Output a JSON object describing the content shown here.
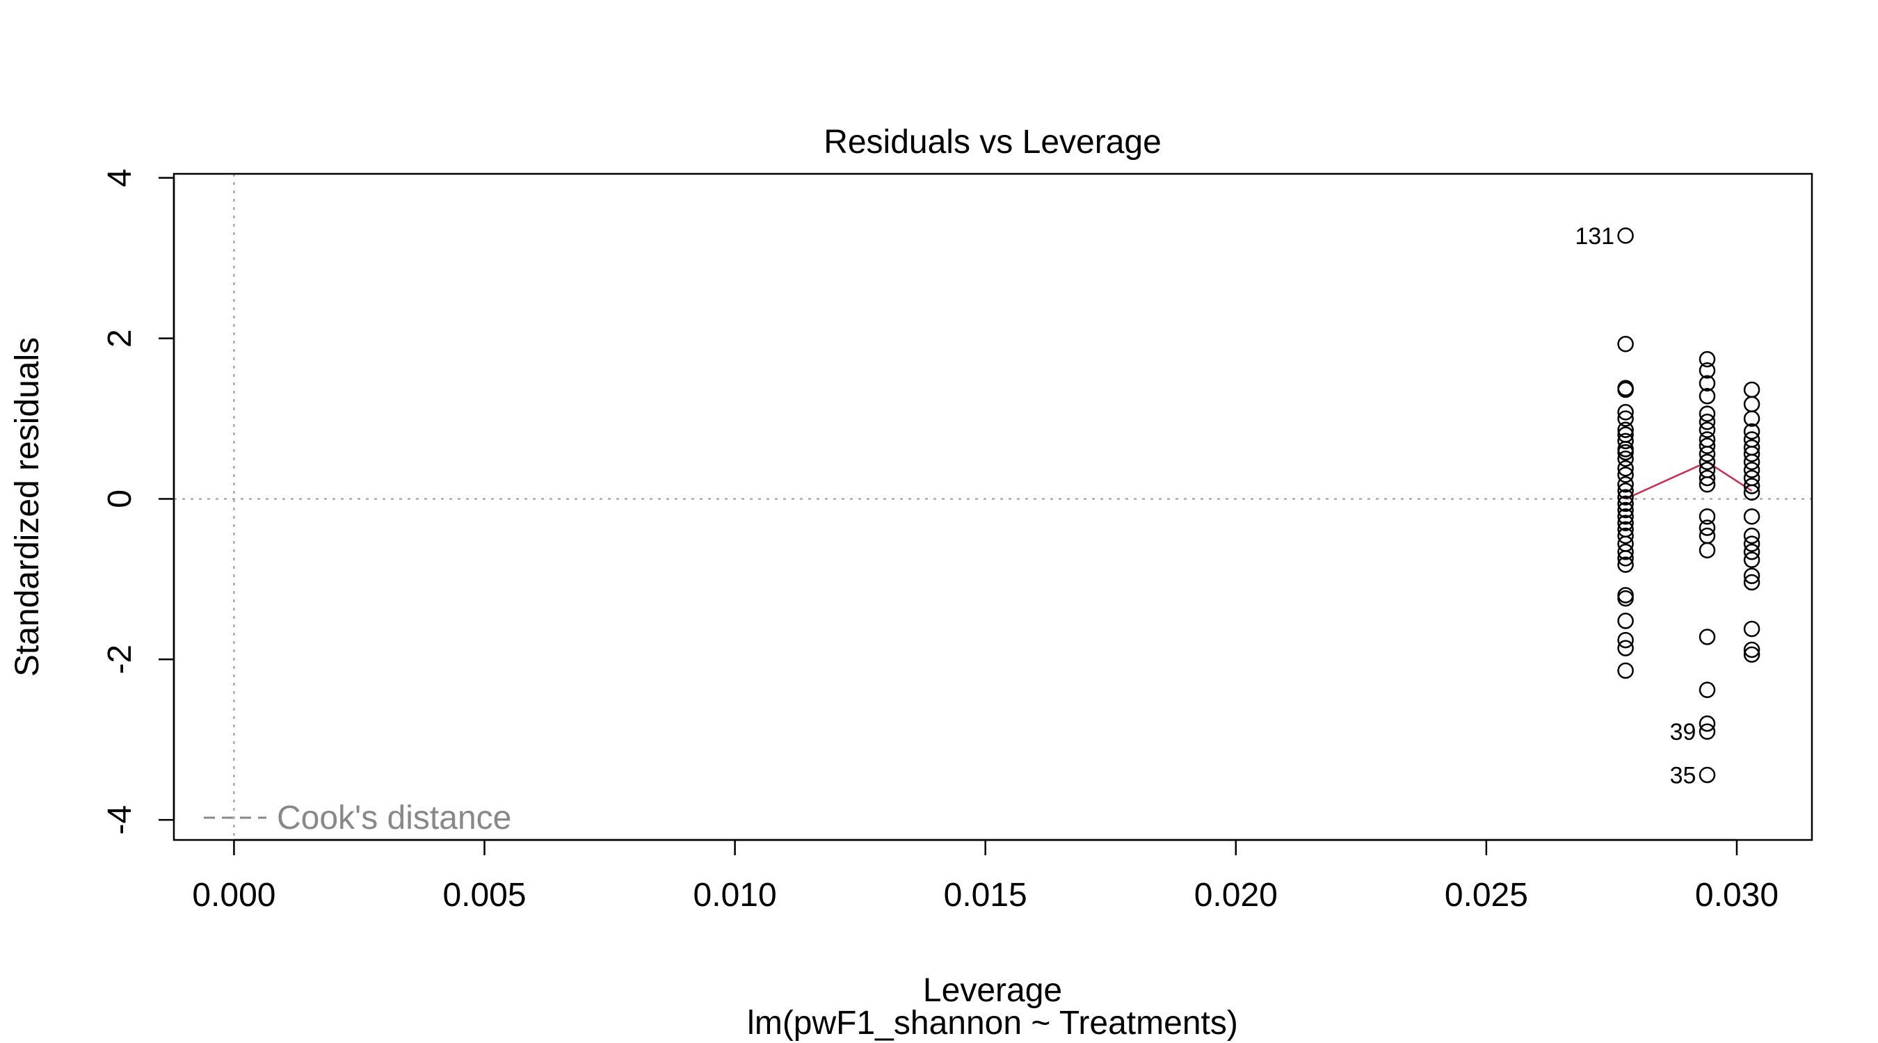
{
  "chart_data": {
    "type": "scatter",
    "title": "Residuals vs Leverage",
    "xlabel": "Leverage",
    "subtitle": "lm(pwF1_shannon ~ Treatments)",
    "ylabel": "Standardized residuals",
    "xlim": [
      -0.0012,
      0.0315
    ],
    "ylim": [
      -4.25,
      4.05
    ],
    "x_ticks": [
      0.0,
      0.005,
      0.01,
      0.015,
      0.02,
      0.025,
      0.03
    ],
    "x_tick_labels": [
      "0.000",
      "0.005",
      "0.010",
      "0.015",
      "0.020",
      "0.025",
      "0.030"
    ],
    "y_ticks": [
      -4,
      -2,
      0,
      2,
      4
    ],
    "y_tick_labels": [
      "-4",
      "-2",
      "0",
      "2",
      "4"
    ],
    "grid": false,
    "reference_lines": {
      "h": 0,
      "v": 0,
      "style": "dotted",
      "color": "#aaaaaa"
    },
    "legend": {
      "entries": [
        {
          "label": "Cook's distance",
          "style": "dashed",
          "color": "#888888"
        }
      ],
      "placement": "bottom-left"
    },
    "colors": {
      "points": "#000000",
      "smooth": "#cd2a4a",
      "reference": "#aaaaaa",
      "legend": "#888888"
    },
    "series": [
      {
        "type": "scatter",
        "points": [
          [
            0.02778,
            3.28
          ],
          [
            0.02778,
            1.93
          ],
          [
            0.02778,
            1.36
          ],
          [
            0.02778,
            1.38
          ],
          [
            0.02778,
            1.08
          ],
          [
            0.02778,
            1.0
          ],
          [
            0.02778,
            0.86
          ],
          [
            0.02778,
            0.8
          ],
          [
            0.02778,
            0.72
          ],
          [
            0.02778,
            0.62
          ],
          [
            0.02778,
            0.58
          ],
          [
            0.02778,
            0.5
          ],
          [
            0.02778,
            0.38
          ],
          [
            0.02778,
            0.3
          ],
          [
            0.02778,
            0.18
          ],
          [
            0.02778,
            0.1
          ],
          [
            0.02778,
            0.02
          ],
          [
            0.02778,
            -0.06
          ],
          [
            0.02778,
            -0.14
          ],
          [
            0.02778,
            -0.22
          ],
          [
            0.02778,
            -0.3
          ],
          [
            0.02778,
            -0.38
          ],
          [
            0.02778,
            -0.46
          ],
          [
            0.02778,
            -0.56
          ],
          [
            0.02778,
            -0.66
          ],
          [
            0.02778,
            -0.74
          ],
          [
            0.02778,
            -0.82
          ],
          [
            0.02778,
            -1.2
          ],
          [
            0.02778,
            -1.24
          ],
          [
            0.02778,
            -1.52
          ],
          [
            0.02778,
            -1.76
          ],
          [
            0.02778,
            -1.86
          ],
          [
            0.02778,
            -2.14
          ],
          [
            0.02941,
            1.74
          ],
          [
            0.02941,
            1.6
          ],
          [
            0.02941,
            1.44
          ],
          [
            0.02941,
            1.28
          ],
          [
            0.02941,
            1.06
          ],
          [
            0.02941,
            0.96
          ],
          [
            0.02941,
            0.86
          ],
          [
            0.02941,
            0.74
          ],
          [
            0.02941,
            0.66
          ],
          [
            0.02941,
            0.56
          ],
          [
            0.02941,
            0.46
          ],
          [
            0.02941,
            0.36
          ],
          [
            0.02941,
            0.26
          ],
          [
            0.02941,
            0.18
          ],
          [
            0.02941,
            -0.22
          ],
          [
            0.02941,
            -0.36
          ],
          [
            0.02941,
            -0.46
          ],
          [
            0.02941,
            -0.64
          ],
          [
            0.02941,
            -1.72
          ],
          [
            0.02941,
            -2.38
          ],
          [
            0.02941,
            -2.8
          ],
          [
            0.02941,
            -2.9
          ],
          [
            0.02941,
            -3.44
          ],
          [
            0.0303,
            1.36
          ],
          [
            0.0303,
            1.18
          ],
          [
            0.0303,
            1.0
          ],
          [
            0.0303,
            0.84
          ],
          [
            0.0303,
            0.74
          ],
          [
            0.0303,
            0.64
          ],
          [
            0.0303,
            0.56
          ],
          [
            0.0303,
            0.46
          ],
          [
            0.0303,
            0.36
          ],
          [
            0.0303,
            0.26
          ],
          [
            0.0303,
            0.16
          ],
          [
            0.0303,
            0.08
          ],
          [
            0.0303,
            -0.22
          ],
          [
            0.0303,
            -0.46
          ],
          [
            0.0303,
            -0.56
          ],
          [
            0.0303,
            -0.66
          ],
          [
            0.0303,
            -0.76
          ],
          [
            0.0303,
            -0.96
          ],
          [
            0.0303,
            -1.04
          ],
          [
            0.0303,
            -1.62
          ],
          [
            0.0303,
            -1.88
          ],
          [
            0.0303,
            -1.94
          ]
        ]
      },
      {
        "type": "line",
        "points": [
          [
            0.02778,
            0.0
          ],
          [
            0.02941,
            0.46
          ],
          [
            0.0303,
            0.1
          ]
        ]
      }
    ],
    "annotations": [
      {
        "text": "131",
        "x": 0.02778,
        "y": 3.28
      },
      {
        "text": "39",
        "x": 0.02941,
        "y": -2.9
      },
      {
        "text": "35",
        "x": 0.02941,
        "y": -3.44
      }
    ]
  }
}
